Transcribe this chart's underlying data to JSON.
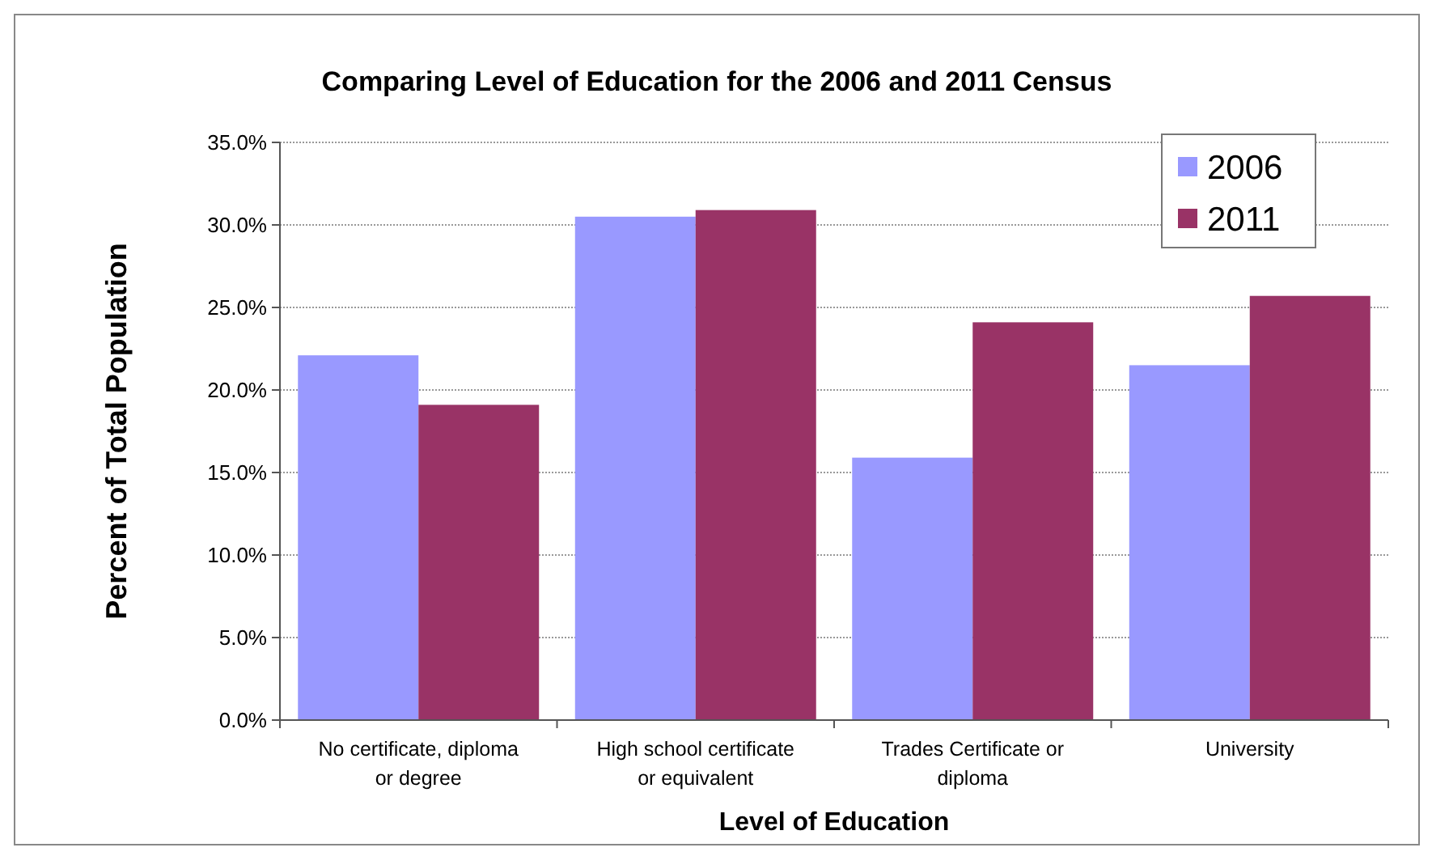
{
  "chart_data": {
    "type": "bar",
    "title": "Comparing Level of Education for the 2006 and 2011 Census",
    "xlabel": "Level of Education",
    "ylabel": "Percent of Total Population",
    "categories": [
      "No certificate, diploma or degree",
      "High school certificate or equivalent",
      "Trades Certificate or diploma",
      "University"
    ],
    "series": [
      {
        "name": "2006",
        "color": "#9999ff",
        "values": [
          22.1,
          30.5,
          15.9,
          21.5
        ]
      },
      {
        "name": "2011",
        "color": "#993366",
        "values": [
          19.1,
          30.9,
          24.1,
          25.7
        ]
      }
    ],
    "ylim": [
      0,
      35
    ],
    "yticks": [
      {
        "value": 0,
        "label": "0.0%"
      },
      {
        "value": 5,
        "label": "5.0%"
      },
      {
        "value": 10,
        "label": "10.0%"
      },
      {
        "value": 15,
        "label": "15.0%"
      },
      {
        "value": 20,
        "label": "20.0%"
      },
      {
        "value": 25,
        "label": "25.0%"
      },
      {
        "value": 30,
        "label": "30.0%"
      },
      {
        "value": 35,
        "label": "35.0%"
      }
    ],
    "grid": "y",
    "legend": "top right"
  }
}
